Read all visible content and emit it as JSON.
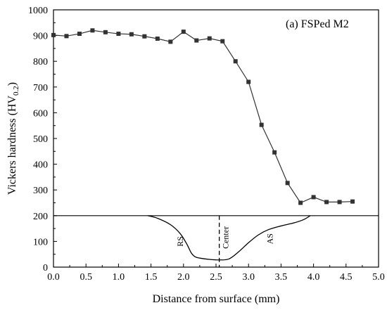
{
  "chart_data": {
    "type": "line",
    "title": "(a) FSPed M2",
    "xlabel": "Distance from surface (mm)",
    "ylabel_main": "Vickers hardness (HV",
    "ylabel_sub": "0.2",
    "ylabel_close": ")",
    "xlim": [
      0.0,
      5.0
    ],
    "ylim": [
      0,
      1000
    ],
    "x_ticks": [
      "0.0",
      "0.5",
      "1.0",
      "1.5",
      "2.0",
      "2.5",
      "3.0",
      "3.5",
      "4.0",
      "4.5",
      "5.0"
    ],
    "y_ticks": [
      "0",
      "100",
      "200",
      "300",
      "400",
      "500",
      "600",
      "700",
      "800",
      "900",
      "1000"
    ],
    "series": [
      {
        "x": [
          0.0,
          0.2,
          0.4,
          0.6,
          0.8,
          1.0,
          1.2,
          1.4,
          1.6,
          1.8,
          2.0,
          2.2,
          2.4,
          2.6,
          2.8,
          3.0,
          3.2,
          3.4,
          3.6,
          3.8,
          4.0,
          4.2,
          4.4,
          4.6
        ],
        "y": [
          902,
          898,
          907,
          920,
          913,
          907,
          905,
          897,
          888,
          876,
          915,
          881,
          889,
          878,
          800,
          720,
          553,
          446,
          327,
          250,
          272,
          253,
          253,
          255
        ],
        "color": "#333333",
        "marker": "square"
      }
    ],
    "annotations": {
      "rs": "RS",
      "center": "Center",
      "as": "AS"
    },
    "center_line_x": 2.55,
    "baseline_y": 200,
    "weld_profile": {
      "x": [
        1.45,
        1.6,
        1.8,
        1.95,
        2.05,
        2.12,
        2.18,
        2.25,
        2.4,
        2.55,
        2.7,
        2.85,
        3.0,
        3.15,
        3.3,
        3.5,
        3.7,
        3.85,
        3.95
      ],
      "y": [
        200,
        190,
        165,
        130,
        90,
        55,
        40,
        35,
        30,
        28,
        32,
        60,
        95,
        125,
        145,
        160,
        172,
        185,
        200
      ]
    },
    "grid": false,
    "legend": "none"
  }
}
